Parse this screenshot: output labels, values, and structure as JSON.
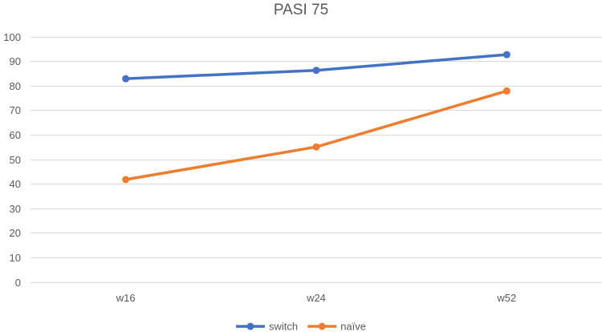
{
  "chart_data": {
    "type": "line",
    "title": "PASI 75",
    "xlabel": "",
    "ylabel": "",
    "categories": [
      "w16",
      "w24",
      "w52"
    ],
    "ylim": [
      0,
      100
    ],
    "yticks": [
      0,
      10,
      20,
      30,
      40,
      50,
      60,
      70,
      80,
      90,
      100
    ],
    "grid": true,
    "legend_position": "bottom",
    "series": [
      {
        "name": "switch",
        "color": "#4472c4",
        "values": [
          82.8,
          86.2,
          92.6
        ]
      },
      {
        "name": "naïve",
        "color": "#ed7d31",
        "values": [
          41.7,
          55.0,
          77.8
        ]
      }
    ]
  }
}
